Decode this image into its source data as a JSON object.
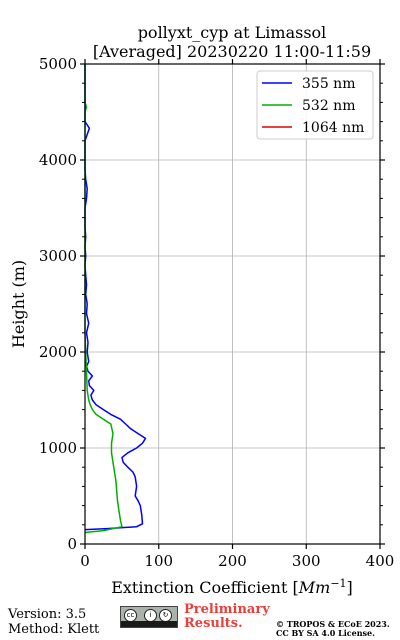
{
  "chart_data": {
    "type": "line",
    "title": "pollyxt_cyp at Limassol",
    "subtitle": "[Averaged] 20230220 11:00-11:59",
    "xlabel": "Extinction Coefficient [",
    "xlabel_unit": "Mm",
    "xlabel_exp": "−1",
    "xlabel_close": "]",
    "ylabel": "Height (m)",
    "xlim": [
      0,
      400
    ],
    "ylim": [
      0,
      5000
    ],
    "xticks": [
      "0",
      "100",
      "200",
      "300",
      "400"
    ],
    "yticks": [
      "0",
      "1000",
      "2000",
      "3000",
      "4000",
      "5000"
    ],
    "grid": true,
    "legend_position": "top-right",
    "series": [
      {
        "name": "355 nm",
        "color": "#0000ff",
        "points": [
          [
            0,
            150
          ],
          [
            30,
            160
          ],
          [
            70,
            180
          ],
          [
            78,
            210
          ],
          [
            77,
            300
          ],
          [
            75,
            400
          ],
          [
            72,
            450
          ],
          [
            68,
            500
          ],
          [
            70,
            600
          ],
          [
            68,
            700
          ],
          [
            65,
            750
          ],
          [
            58,
            800
          ],
          [
            52,
            850
          ],
          [
            50,
            900
          ],
          [
            58,
            950
          ],
          [
            70,
            1000
          ],
          [
            78,
            1050
          ],
          [
            82,
            1100
          ],
          [
            72,
            1150
          ],
          [
            62,
            1200
          ],
          [
            55,
            1250
          ],
          [
            48,
            1300
          ],
          [
            35,
            1350
          ],
          [
            25,
            1400
          ],
          [
            15,
            1450
          ],
          [
            10,
            1500
          ],
          [
            8,
            1550
          ],
          [
            12,
            1600
          ],
          [
            6,
            1650
          ],
          [
            5,
            1700
          ],
          [
            10,
            1750
          ],
          [
            4,
            1800
          ],
          [
            2,
            1850
          ],
          [
            5,
            1900
          ],
          [
            3,
            2000
          ],
          [
            4,
            2100
          ],
          [
            2,
            2200
          ],
          [
            5,
            2300
          ],
          [
            2,
            2400
          ],
          [
            3,
            2500
          ],
          [
            1,
            2600
          ],
          [
            2,
            2700
          ],
          [
            1,
            2800
          ],
          [
            0,
            2900
          ],
          [
            1,
            3000
          ],
          [
            0,
            3100
          ],
          [
            1,
            3200
          ],
          [
            0,
            3300
          ],
          [
            0,
            3400
          ],
          [
            0,
            3500
          ],
          [
            2,
            3600
          ],
          [
            3,
            3700
          ],
          [
            1,
            3800
          ],
          [
            0,
            3900
          ],
          [
            0,
            4000
          ],
          [
            0,
            4100
          ],
          [
            0,
            4200
          ],
          [
            6,
            4330
          ],
          [
            0,
            4400
          ],
          [
            0,
            4600
          ],
          [
            0,
            4800
          ],
          [
            0,
            5000
          ]
        ]
      },
      {
        "name": "532 nm",
        "color": "#00b000",
        "points": [
          [
            0,
            120
          ],
          [
            25,
            140
          ],
          [
            50,
            180
          ],
          [
            48,
            250
          ],
          [
            46,
            350
          ],
          [
            44,
            450
          ],
          [
            43,
            550
          ],
          [
            42,
            650
          ],
          [
            40,
            750
          ],
          [
            38,
            850
          ],
          [
            36,
            950
          ],
          [
            36,
            1050
          ],
          [
            38,
            1150
          ],
          [
            35,
            1250
          ],
          [
            25,
            1300
          ],
          [
            15,
            1350
          ],
          [
            10,
            1400
          ],
          [
            7,
            1450
          ],
          [
            5,
            1500
          ],
          [
            3,
            1600
          ],
          [
            2,
            1800
          ],
          [
            1,
            2000
          ],
          [
            0,
            2200
          ],
          [
            0,
            3000
          ],
          [
            0,
            4000
          ],
          [
            0,
            4500
          ],
          [
            2,
            4550
          ],
          [
            0,
            4600
          ],
          [
            0,
            5000
          ]
        ]
      },
      {
        "name": "1064 nm",
        "color": "#e00000",
        "points": []
      }
    ]
  },
  "footer": {
    "version": "Version: 3.5",
    "method": "Method: Klett",
    "preliminary_line1": "Preliminary",
    "preliminary_line2": "Results.",
    "copyright": "© TROPOS & ECoE 2023.",
    "license": "CC BY SA 4.0 License.",
    "cc_logo_text": "cc"
  }
}
